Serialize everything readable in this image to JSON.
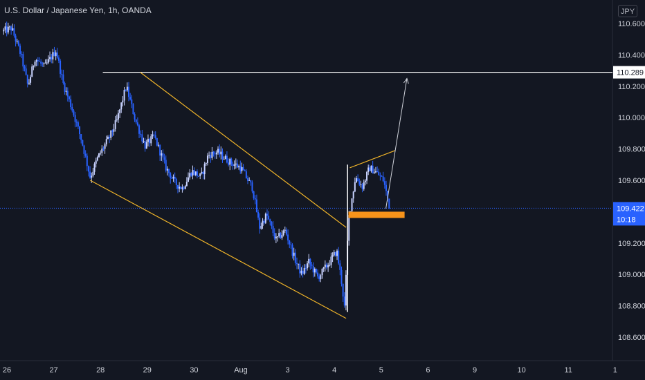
{
  "header": {
    "title": "U.S. Dollar / Japanese Yen, 1h, OANDA"
  },
  "axis": {
    "currency": "JPY"
  },
  "colors": {
    "background": "#131722",
    "candle": "#2962ff",
    "candle_light": "#c9d3ff",
    "channel": "#f0b429",
    "level": "#ffffff",
    "current_price": "#2962ff",
    "support_box": "#f7931a"
  },
  "chart_data": {
    "type": "candlestick",
    "title": "U.S. Dollar / Japanese Yen, 1h, OANDA",
    "symbol": "USDJPY",
    "timeframe": "1h",
    "source": "OANDA",
    "ylim": [
      108.5,
      110.68
    ],
    "y_ticks": [
      "110.600",
      "110.400",
      "110.200",
      "110.000",
      "109.800",
      "109.600",
      "109.200",
      "109.000",
      "108.800",
      "108.600"
    ],
    "x_ticks": [
      "26",
      "27",
      "28",
      "29",
      "30",
      "Aug",
      "3",
      "4",
      "5",
      "6",
      "9",
      "10",
      "11",
      "1"
    ],
    "x_tick_index": [
      0,
      1,
      2,
      3,
      4,
      5,
      6,
      7,
      8,
      9,
      10,
      11,
      12,
      13
    ],
    "price_path": [
      [
        -0.1,
        110.55
      ],
      [
        0.1,
        110.57
      ],
      [
        0.3,
        110.4
      ],
      [
        0.45,
        110.2
      ],
      [
        0.6,
        110.38
      ],
      [
        0.8,
        110.32
      ],
      [
        1.05,
        110.43
      ],
      [
        1.2,
        110.22
      ],
      [
        1.4,
        110.05
      ],
      [
        1.6,
        109.85
      ],
      [
        1.78,
        109.62
      ],
      [
        1.95,
        109.75
      ],
      [
        2.2,
        109.88
      ],
      [
        2.35,
        109.98
      ],
      [
        2.55,
        110.2
      ],
      [
        2.75,
        109.98
      ],
      [
        2.95,
        109.82
      ],
      [
        3.15,
        109.88
      ],
      [
        3.4,
        109.68
      ],
      [
        3.6,
        109.58
      ],
      [
        3.75,
        109.55
      ],
      [
        3.95,
        109.66
      ],
      [
        4.15,
        109.62
      ],
      [
        4.3,
        109.76
      ],
      [
        4.5,
        109.78
      ],
      [
        4.75,
        109.72
      ],
      [
        5.0,
        109.68
      ],
      [
        5.25,
        109.55
      ],
      [
        5.4,
        109.3
      ],
      [
        5.55,
        109.38
      ],
      [
        5.75,
        109.22
      ],
      [
        5.95,
        109.28
      ],
      [
        6.15,
        109.1
      ],
      [
        6.3,
        109.0
      ],
      [
        6.45,
        109.08
      ],
      [
        6.65,
        108.98
      ],
      [
        6.9,
        109.08
      ],
      [
        7.05,
        109.15
      ],
      [
        7.15,
        108.96
      ],
      [
        7.22,
        108.78
      ],
      [
        7.3,
        109.35
      ],
      [
        7.45,
        109.62
      ],
      [
        7.6,
        109.56
      ],
      [
        7.75,
        109.68
      ],
      [
        7.9,
        109.65
      ],
      [
        8.05,
        109.6
      ],
      [
        8.17,
        109.44
      ]
    ],
    "annotations": {
      "resistance_level": 110.289,
      "current_price": 109.422,
      "countdown": "10:18",
      "support_zone": [
        109.36,
        109.4
      ],
      "channel_upper": [
        [
          2.85,
          110.289
        ],
        [
          7.25,
          109.3
        ]
      ],
      "channel_lower": [
        [
          1.78,
          109.6
        ],
        [
          7.25,
          108.72
        ]
      ],
      "wedge_upper": [
        [
          7.33,
          109.68
        ],
        [
          8.3,
          109.79
        ]
      ],
      "projection_arrow": [
        [
          8.1,
          109.42
        ],
        [
          8.55,
          110.25
        ]
      ]
    }
  }
}
